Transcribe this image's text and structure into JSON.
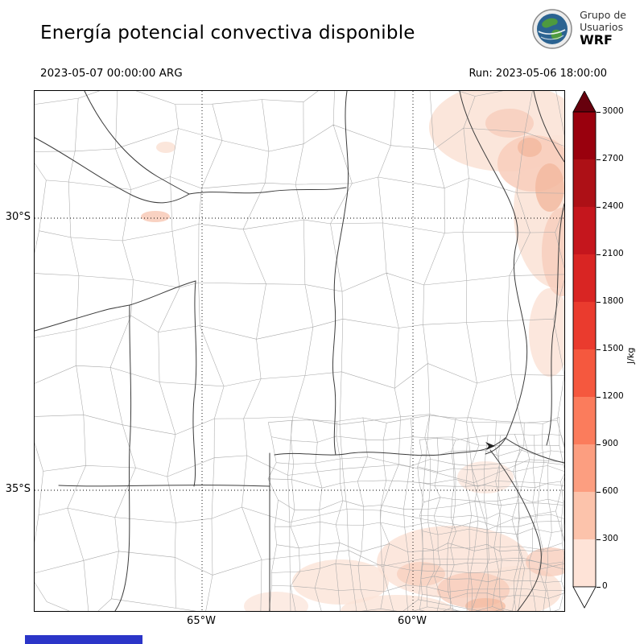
{
  "header": {
    "title": "Energía potencial convectiva disponible",
    "valid_time": "2023-05-07 00:00:00 ARG",
    "run_time": "Run: 2023-05-06 18:00:00",
    "logo": {
      "org_line1": "Grupo de",
      "org_line2": "Usuarios",
      "model": "WRF"
    }
  },
  "map": {
    "lat_ticks": [
      "30°S",
      "35°S"
    ],
    "lon_ticks": [
      "65°W",
      "60°W"
    ],
    "shade_light": "#fbe3d7",
    "shade_mid": "#f8cdbb",
    "shade_deep": "#f3b89d"
  },
  "colorbar": {
    "unit": "J/kg",
    "ticks": [
      "3000",
      "2700",
      "2400",
      "2100",
      "1800",
      "1500",
      "1200",
      "900",
      "600",
      "300",
      "0"
    ],
    "segment_colors_top_to_bottom": [
      "#99000d",
      "#ad1016",
      "#c5161d",
      "#d92523",
      "#ea3b2e",
      "#f5583e",
      "#fb7c5c",
      "#fc9e80",
      "#fcc3ab",
      "#fee3d7"
    ],
    "over_arrow_color": "#67000d",
    "under_arrow_color": "#ffffff"
  },
  "footer": {
    "partial_bar_color": "#2b35c8"
  }
}
